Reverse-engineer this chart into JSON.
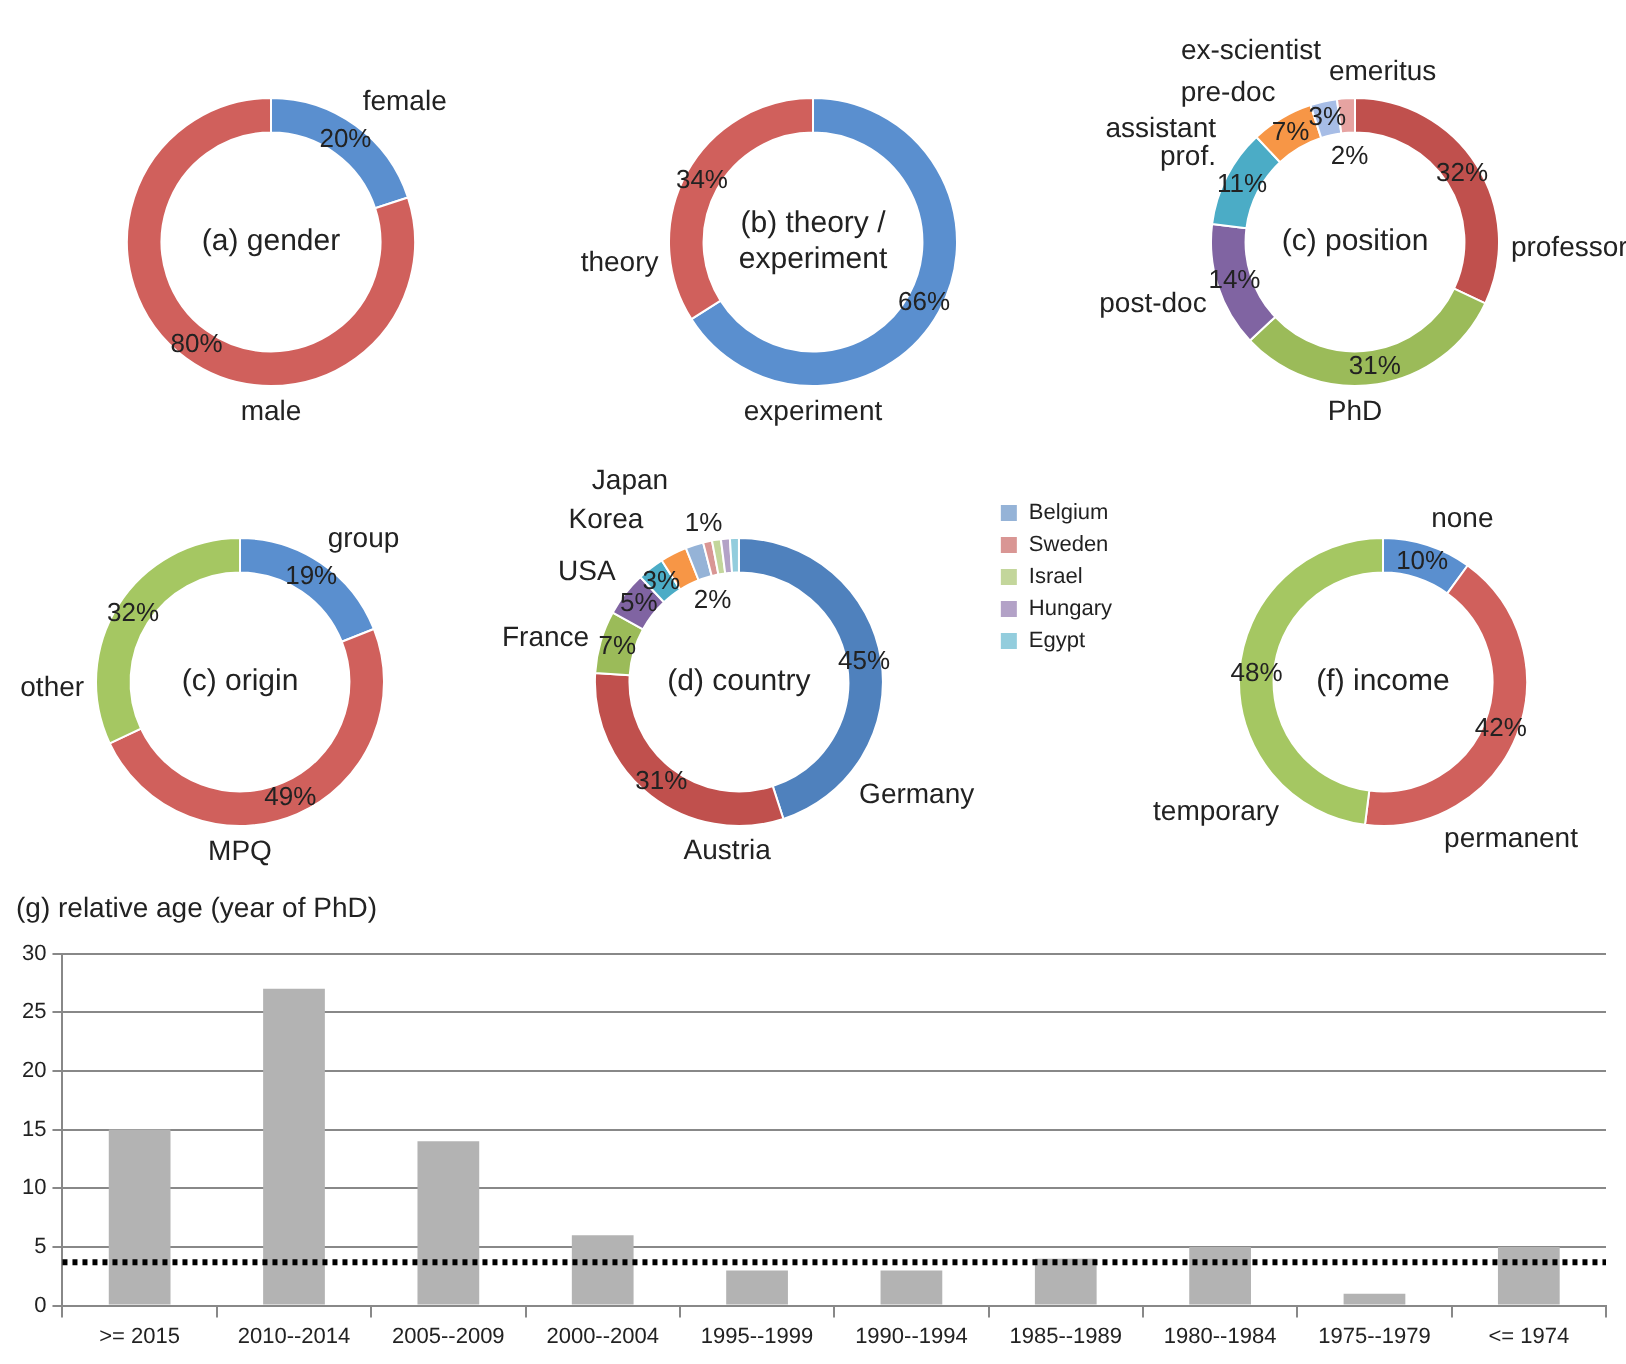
{
  "chart_data": [
    {
      "type": "donut",
      "title": "(a) gender",
      "categories": [
        "female",
        "male"
      ],
      "values": [
        20,
        80
      ],
      "colors": [
        "#5a8fcf",
        "#d0605c"
      ],
      "value_labels": [
        "20%",
        "80%"
      ]
    },
    {
      "type": "donut",
      "title": "(b) theory / experiment",
      "categories": [
        "experiment",
        "theory"
      ],
      "values": [
        66,
        34
      ],
      "colors": [
        "#5a8fcf",
        "#d0605c"
      ],
      "value_labels": [
        "66%",
        "34%"
      ]
    },
    {
      "type": "donut",
      "title": "(c) position",
      "categories": [
        "professor",
        "PhD",
        "post-doc",
        "assistant prof.",
        "pre-doc",
        "ex-scientist",
        "emeritus"
      ],
      "values": [
        32,
        31,
        14,
        11,
        7,
        3,
        2
      ],
      "colors": [
        "#c0504d",
        "#9bbb59",
        "#8064a2",
        "#4bacc6",
        "#f79646",
        "#a7bde6",
        "#e6a3a1"
      ],
      "value_labels": [
        "32%",
        "31%",
        "14%",
        "11%",
        "7%",
        "3%",
        "2%"
      ]
    },
    {
      "type": "donut",
      "title": "(c) origin",
      "categories": [
        "group",
        "MPQ",
        "other"
      ],
      "values": [
        19,
        49,
        32
      ],
      "colors": [
        "#5a8fcf",
        "#d0605c",
        "#a5c762"
      ],
      "value_labels": [
        "19%",
        "49%",
        "32%"
      ]
    },
    {
      "type": "donut",
      "title": "(d) country",
      "categories": [
        "Germany",
        "Austria",
        "France",
        "USA",
        "Korea",
        "Japan",
        "Belgium",
        "Sweden",
        "Israel",
        "Hungary",
        "Egypt"
      ],
      "values": [
        45,
        31,
        7,
        5,
        3,
        3,
        2,
        1,
        1,
        1,
        1
      ],
      "colors": [
        "#4f81bd",
        "#c0504d",
        "#9bbb59",
        "#8064a2",
        "#4bacc6",
        "#f79646",
        "#95b3d7",
        "#d99694",
        "#c3d69b",
        "#b3a2c7",
        "#93cddd"
      ],
      "value_labels": [
        "45%",
        "31%",
        "7%",
        "5%",
        "3%",
        null,
        "2%",
        "1%",
        null,
        null,
        null
      ],
      "legend": "right"
    },
    {
      "type": "donut",
      "title": "(f) income",
      "categories": [
        "none",
        "permanent",
        "temporary"
      ],
      "values": [
        10,
        42,
        48
      ],
      "colors": [
        "#5a8fcf",
        "#d0605c",
        "#a5c762"
      ],
      "value_labels": [
        "10%",
        "42%",
        "48%"
      ]
    },
    {
      "type": "bar",
      "title": "(g) relative age (year of PhD)",
      "categories": [
        ">= 2015",
        "2010--2014",
        "2005--2009",
        "2000--2004",
        "1995--1999",
        "1990--1994",
        "1985--1989",
        "1980--1984",
        "1975--1979",
        "<= 1974"
      ],
      "values": [
        15,
        27,
        14,
        6,
        3,
        3,
        4,
        5,
        1,
        5
      ],
      "color": "#b3b3b3",
      "ylim": [
        0,
        30
      ],
      "yticks": [
        0,
        5,
        10,
        15,
        20,
        25,
        30
      ],
      "grid": "y",
      "ref_lines": [
        {
          "axis": "y",
          "value": 3.7,
          "color": "#000000",
          "line_style": "dotted"
        }
      ]
    }
  ]
}
